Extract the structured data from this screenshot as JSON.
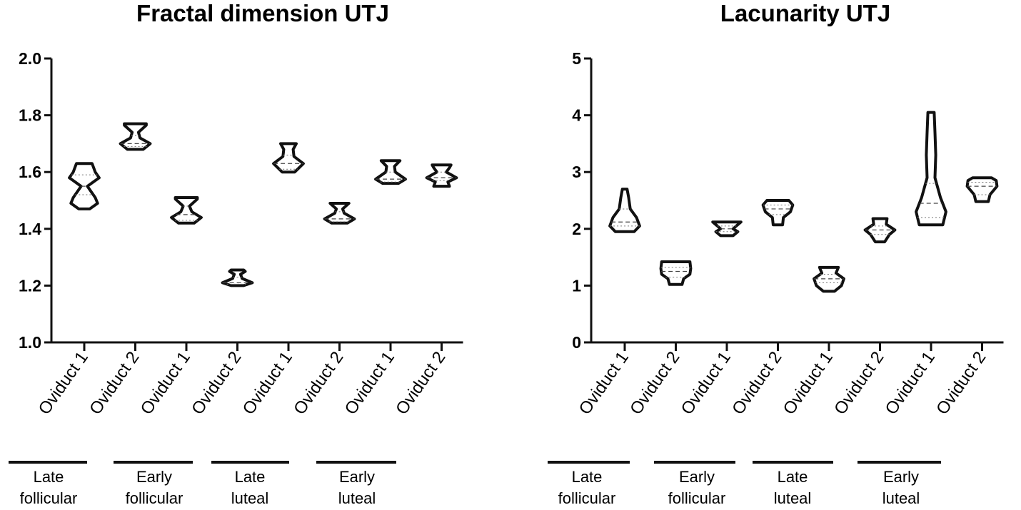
{
  "chart_data": [
    {
      "type": "violin",
      "title": "Fractal dimension UTJ",
      "xlabel": "",
      "ylabel": "",
      "ylim": [
        1.0,
        2.0
      ],
      "yticks": [
        "1.0",
        "1.2",
        "1.4",
        "1.6",
        "1.8",
        "2.0"
      ],
      "categories": [
        "Oviduct 1",
        "Oviduct 2",
        "Oviduct 1",
        "Oviduct 2",
        "Oviduct 1",
        "Oviduct 2",
        "Oviduct 1",
        "Oviduct 2"
      ],
      "groups": [
        {
          "label_lines": [
            "Late",
            "follicular"
          ]
        },
        {
          "label_lines": [
            "Early",
            "follicular"
          ]
        },
        {
          "label_lines": [
            "Late",
            "luteal"
          ]
        },
        {
          "label_lines": [
            "Early",
            "luteal"
          ]
        }
      ],
      "violins": [
        {
          "min": 1.47,
          "q1": 1.52,
          "median": 1.55,
          "q3": 1.59,
          "max": 1.63,
          "profile": [
            [
              1.47,
              0.35
            ],
            [
              1.49,
              0.85
            ],
            [
              1.51,
              0.7
            ],
            [
              1.55,
              0.2
            ],
            [
              1.58,
              0.95
            ],
            [
              1.6,
              0.7
            ],
            [
              1.63,
              0.5
            ]
          ]
        },
        {
          "min": 1.68,
          "q1": 1.69,
          "median": 1.7,
          "q3": 1.73,
          "max": 1.77,
          "profile": [
            [
              1.68,
              0.5
            ],
            [
              1.7,
              0.95
            ],
            [
              1.72,
              0.3
            ],
            [
              1.74,
              0.2
            ],
            [
              1.765,
              0.7
            ],
            [
              1.77,
              0.7
            ]
          ]
        },
        {
          "min": 1.42,
          "q1": 1.43,
          "median": 1.45,
          "q3": 1.48,
          "max": 1.51,
          "profile": [
            [
              1.42,
              0.5
            ],
            [
              1.44,
              0.95
            ],
            [
              1.46,
              0.35
            ],
            [
              1.48,
              0.2
            ],
            [
              1.505,
              0.7
            ],
            [
              1.51,
              0.7
            ]
          ]
        },
        {
          "min": 1.2,
          "q1": 1.205,
          "median": 1.21,
          "q3": 1.23,
          "max": 1.25,
          "profile": [
            [
              1.2,
              0.4
            ],
            [
              1.21,
              0.95
            ],
            [
              1.225,
              0.3
            ],
            [
              1.24,
              0.2
            ],
            [
              1.25,
              0.5
            ],
            [
              1.255,
              0.4
            ]
          ]
        },
        {
          "min": 1.6,
          "q1": 1.61,
          "median": 1.63,
          "q3": 1.66,
          "max": 1.7,
          "profile": [
            [
              1.6,
              0.4
            ],
            [
              1.63,
              0.95
            ],
            [
              1.655,
              0.35
            ],
            [
              1.68,
              0.3
            ],
            [
              1.7,
              0.5
            ]
          ]
        },
        {
          "min": 1.42,
          "q1": 1.425,
          "median": 1.435,
          "q3": 1.46,
          "max": 1.49,
          "profile": [
            [
              1.42,
              0.5
            ],
            [
              1.435,
              0.95
            ],
            [
              1.455,
              0.3
            ],
            [
              1.47,
              0.2
            ],
            [
              1.49,
              0.6
            ]
          ]
        },
        {
          "min": 1.56,
          "q1": 1.565,
          "median": 1.575,
          "q3": 1.6,
          "max": 1.64,
          "profile": [
            [
              1.56,
              0.5
            ],
            [
              1.575,
              0.95
            ],
            [
              1.6,
              0.3
            ],
            [
              1.62,
              0.25
            ],
            [
              1.64,
              0.6
            ]
          ]
        },
        {
          "min": 1.55,
          "q1": 1.57,
          "median": 1.58,
          "q3": 1.6,
          "max": 1.62,
          "profile": [
            [
              1.55,
              0.5
            ],
            [
              1.565,
              0.4
            ],
            [
              1.58,
              0.95
            ],
            [
              1.6,
              0.3
            ],
            [
              1.615,
              0.5
            ],
            [
              1.625,
              0.6
            ]
          ]
        }
      ]
    },
    {
      "type": "violin",
      "title": "Lacunarity UTJ",
      "xlabel": "",
      "ylabel": "",
      "ylim": [
        0,
        5
      ],
      "yticks": [
        "0",
        "1",
        "2",
        "3",
        "4",
        "5"
      ],
      "categories": [
        "Oviduct 1",
        "Oviduct 2",
        "Oviduct 1",
        "Oviduct 2",
        "Oviduct 1",
        "Oviduct 2",
        "Oviduct 1",
        "Oviduct 2"
      ],
      "groups": [
        {
          "label_lines": [
            "Late",
            "follicular"
          ]
        },
        {
          "label_lines": [
            "Early",
            "follicular"
          ]
        },
        {
          "label_lines": [
            "Late",
            "luteal"
          ]
        },
        {
          "label_lines": [
            "Early",
            "luteal"
          ]
        }
      ],
      "violins": [
        {
          "min": 1.95,
          "q1": 2.05,
          "median": 2.12,
          "q3": 2.35,
          "max": 2.7,
          "profile": [
            [
              1.95,
              0.6
            ],
            [
              2.05,
              0.95
            ],
            [
              2.2,
              0.75
            ],
            [
              2.35,
              0.35
            ],
            [
              2.55,
              0.25
            ],
            [
              2.7,
              0.15
            ]
          ]
        },
        {
          "min": 1.02,
          "q1": 1.15,
          "median": 1.25,
          "q3": 1.32,
          "max": 1.42,
          "profile": [
            [
              1.02,
              0.4
            ],
            [
              1.12,
              0.5
            ],
            [
              1.2,
              0.9
            ],
            [
              1.3,
              0.95
            ],
            [
              1.42,
              0.9
            ]
          ]
        },
        {
          "min": 1.88,
          "q1": 1.95,
          "median": 2.0,
          "q3": 2.05,
          "max": 2.12,
          "profile": [
            [
              1.88,
              0.4
            ],
            [
              1.95,
              0.7
            ],
            [
              2.0,
              0.4
            ],
            [
              2.05,
              0.6
            ],
            [
              2.12,
              0.9
            ]
          ]
        },
        {
          "min": 2.07,
          "q1": 2.25,
          "median": 2.35,
          "q3": 2.42,
          "max": 2.5,
          "profile": [
            [
              2.07,
              0.3
            ],
            [
              2.2,
              0.35
            ],
            [
              2.3,
              0.8
            ],
            [
              2.42,
              0.95
            ],
            [
              2.5,
              0.7
            ]
          ]
        },
        {
          "min": 0.9,
          "q1": 1.05,
          "median": 1.12,
          "q3": 1.2,
          "max": 1.32,
          "profile": [
            [
              0.9,
              0.35
            ],
            [
              1.0,
              0.8
            ],
            [
              1.12,
              0.95
            ],
            [
              1.22,
              0.45
            ],
            [
              1.32,
              0.6
            ]
          ]
        },
        {
          "min": 1.77,
          "q1": 1.9,
          "median": 1.98,
          "q3": 2.05,
          "max": 2.18,
          "profile": [
            [
              1.77,
              0.3
            ],
            [
              1.9,
              0.6
            ],
            [
              1.98,
              0.95
            ],
            [
              2.08,
              0.4
            ],
            [
              2.18,
              0.45
            ]
          ]
        },
        {
          "min": 2.07,
          "q1": 2.2,
          "median": 2.45,
          "q3": 2.8,
          "max": 4.05,
          "profile": [
            [
              2.07,
              0.75
            ],
            [
              2.3,
              0.95
            ],
            [
              2.55,
              0.6
            ],
            [
              2.9,
              0.25
            ],
            [
              3.3,
              0.3
            ],
            [
              3.7,
              0.25
            ],
            [
              4.05,
              0.2
            ]
          ]
        },
        {
          "min": 2.48,
          "q1": 2.6,
          "median": 2.75,
          "q3": 2.82,
          "max": 2.9,
          "profile": [
            [
              2.48,
              0.4
            ],
            [
              2.6,
              0.5
            ],
            [
              2.75,
              0.95
            ],
            [
              2.85,
              0.9
            ],
            [
              2.9,
              0.6
            ]
          ]
        }
      ]
    }
  ]
}
